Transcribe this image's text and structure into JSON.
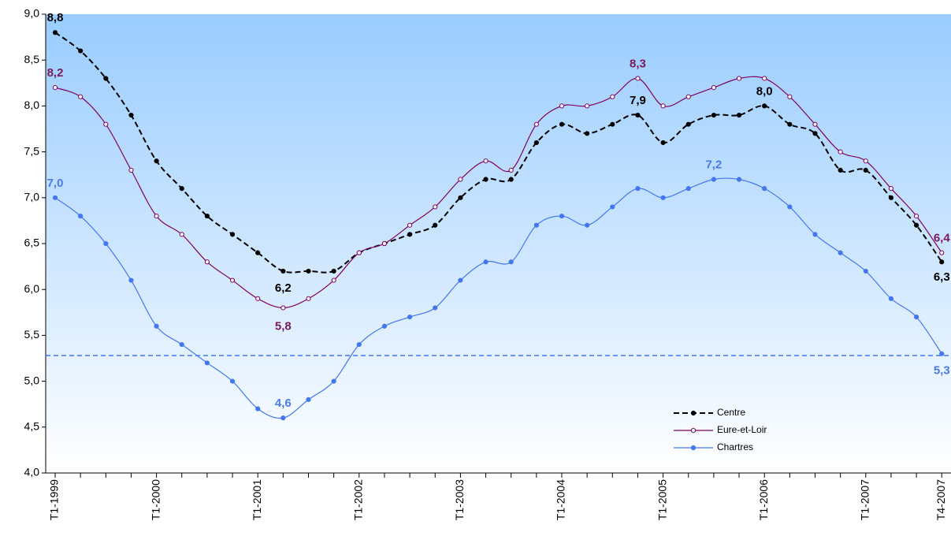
{
  "chart_data": {
    "type": "line",
    "categories": [
      "T1-1999",
      null,
      null,
      null,
      "T1-2000",
      null,
      null,
      null,
      "T1-2001",
      null,
      null,
      null,
      "T1-2002",
      null,
      null,
      null,
      "T1-2003",
      null,
      null,
      null,
      "T1-2004",
      null,
      null,
      null,
      "T1-2005",
      null,
      null,
      null,
      "T1-2006",
      null,
      null,
      null,
      "T1-2007",
      null,
      null,
      "T4-2007"
    ],
    "series": [
      {
        "name": "Centre",
        "color": "#000000",
        "dashed": true,
        "marker": "filled",
        "values": [
          8.8,
          8.6,
          8.3,
          7.9,
          7.4,
          7.1,
          6.8,
          6.6,
          6.4,
          6.2,
          6.2,
          6.2,
          6.4,
          6.5,
          6.6,
          6.7,
          7.0,
          7.2,
          7.2,
          7.6,
          7.8,
          7.7,
          7.8,
          7.9,
          7.6,
          7.8,
          7.9,
          7.9,
          8.0,
          7.8,
          7.7,
          7.3,
          7.3,
          7.0,
          6.7,
          6.3
        ],
        "value_labels": [
          "8,8",
          null,
          null,
          null,
          null,
          null,
          null,
          null,
          null,
          "6,2",
          null,
          null,
          null,
          null,
          null,
          null,
          null,
          null,
          null,
          null,
          null,
          null,
          null,
          "7,9",
          null,
          null,
          null,
          null,
          "8,0",
          null,
          null,
          null,
          null,
          null,
          null,
          "6,3"
        ]
      },
      {
        "name": "Eure-et-Loir",
        "color": "#800060",
        "dashed": false,
        "marker": "hollow",
        "values": [
          8.2,
          8.1,
          7.8,
          7.3,
          6.8,
          6.6,
          6.3,
          6.1,
          5.9,
          5.8,
          5.9,
          6.1,
          6.4,
          6.5,
          6.7,
          6.9,
          7.2,
          7.4,
          7.3,
          7.8,
          8.0,
          8.0,
          8.1,
          8.3,
          8.0,
          8.1,
          8.2,
          8.3,
          8.3,
          8.1,
          7.8,
          7.5,
          7.4,
          7.1,
          6.8,
          6.4
        ],
        "value_labels": [
          "8,2",
          null,
          null,
          null,
          null,
          null,
          null,
          null,
          null,
          "5,8",
          null,
          null,
          null,
          null,
          null,
          null,
          null,
          null,
          null,
          null,
          null,
          null,
          null,
          "8,3",
          null,
          null,
          null,
          null,
          null,
          null,
          null,
          null,
          null,
          null,
          null,
          "6,4"
        ]
      },
      {
        "name": "Chartres",
        "color": "#4477ee",
        "dashed": false,
        "marker": "filled",
        "values": [
          7.0,
          6.8,
          6.5,
          6.1,
          5.6,
          5.4,
          5.2,
          5.0,
          4.7,
          4.6,
          4.8,
          5.0,
          5.4,
          5.6,
          5.7,
          5.8,
          6.1,
          6.3,
          6.3,
          6.7,
          6.8,
          6.7,
          6.9,
          7.1,
          7.0,
          7.1,
          7.2,
          7.2,
          7.1,
          6.9,
          6.6,
          6.4,
          6.2,
          5.9,
          5.7,
          5.3
        ],
        "value_labels": [
          "7,0",
          null,
          null,
          null,
          null,
          null,
          null,
          null,
          null,
          "4,6",
          null,
          null,
          null,
          null,
          null,
          null,
          null,
          null,
          null,
          null,
          null,
          null,
          null,
          null,
          null,
          null,
          "7,2",
          null,
          null,
          null,
          null,
          null,
          null,
          null,
          null,
          "5,3"
        ]
      }
    ],
    "reference_line": {
      "value": 5.28,
      "color": "#4477ee"
    },
    "ylim": [
      4,
      9
    ],
    "yticks": [
      {
        "value": 4,
        "label": "4,0"
      },
      {
        "value": 4.5,
        "label": "4,5"
      },
      {
        "value": 5,
        "label": "5,0"
      },
      {
        "value": 5.5,
        "label": "5,5"
      },
      {
        "value": 6,
        "label": "6,0"
      },
      {
        "value": 6.5,
        "label": "6,5"
      },
      {
        "value": 7,
        "label": "7,0"
      },
      {
        "value": 7.5,
        "label": "7,5"
      },
      {
        "value": 8,
        "label": "8,0"
      },
      {
        "value": 8.5,
        "label": "8,5"
      },
      {
        "value": 9,
        "label": "9,0"
      }
    ],
    "legend": "bottom-right"
  }
}
